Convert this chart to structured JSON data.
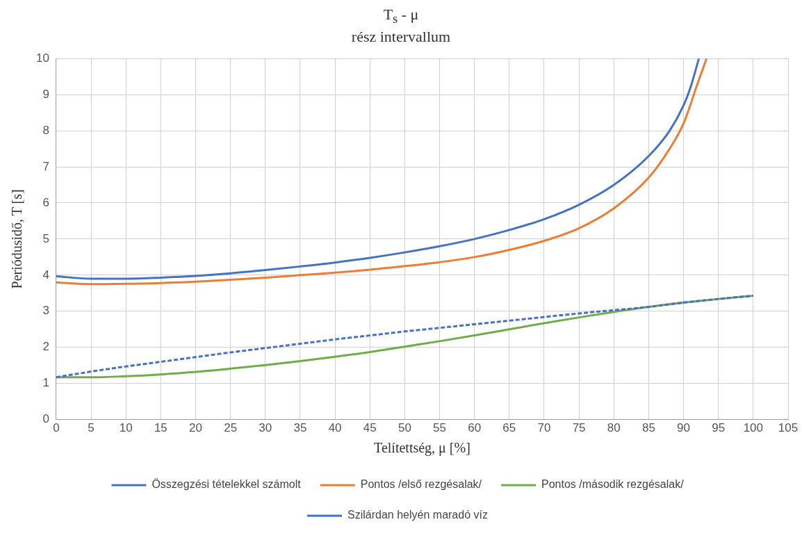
{
  "chart_data": {
    "type": "line",
    "title": "T$_{s}$ - μ",
    "subtitle": "rész intervallum",
    "xlabel": "Telítettség, μ [%]",
    "ylabel": "Periódusidő, T [s]",
    "xlim": [
      0,
      105
    ],
    "xticks": [
      0,
      5,
      10,
      15,
      20,
      25,
      30,
      35,
      40,
      45,
      50,
      55,
      60,
      65,
      70,
      75,
      80,
      85,
      90,
      95,
      100,
      105
    ],
    "ylim": [
      0,
      10
    ],
    "yticks": [
      0,
      1,
      2,
      3,
      4,
      5,
      6,
      7,
      8,
      9,
      10
    ],
    "grid": true,
    "legend": "bottom",
    "marker": "none",
    "series": [
      {
        "name": "Összegzési tételekkel számolt",
        "color": "#4472c4",
        "line_style": "solid",
        "x": [
          0,
          5,
          10,
          15,
          20,
          25,
          30,
          35,
          40,
          45,
          50,
          55,
          60,
          65,
          70,
          75,
          80,
          85,
          88,
          90,
          91,
          92.2
        ],
        "values": [
          3.97,
          3.9,
          3.9,
          3.93,
          3.98,
          4.05,
          4.14,
          4.24,
          4.35,
          4.48,
          4.63,
          4.8,
          5.0,
          5.25,
          5.55,
          5.95,
          6.5,
          7.3,
          8.0,
          8.7,
          9.2,
          10
        ]
      },
      {
        "name": "Pontos /első rezgésalak/",
        "color": "#ed7d31",
        "line_style": "solid",
        "x": [
          0,
          5,
          10,
          15,
          20,
          25,
          30,
          35,
          40,
          45,
          50,
          55,
          60,
          65,
          70,
          75,
          80,
          85,
          88,
          90,
          92,
          93.3
        ],
        "values": [
          3.8,
          3.75,
          3.76,
          3.78,
          3.82,
          3.87,
          3.93,
          4.0,
          4.07,
          4.15,
          4.25,
          4.36,
          4.5,
          4.7,
          4.95,
          5.3,
          5.85,
          6.7,
          7.5,
          8.2,
          9.3,
          10
        ]
      },
      {
        "name": "Pontos /második rezgésalak/",
        "color": "#70ad47",
        "line_style": "solid",
        "x": [
          0,
          5,
          10,
          15,
          20,
          25,
          30,
          35,
          40,
          45,
          50,
          55,
          60,
          65,
          70,
          75,
          80,
          85,
          90,
          95,
          100
        ],
        "values": [
          1.17,
          1.17,
          1.2,
          1.25,
          1.32,
          1.41,
          1.51,
          1.62,
          1.74,
          1.87,
          2.02,
          2.17,
          2.33,
          2.5,
          2.67,
          2.83,
          2.98,
          3.12,
          3.24,
          3.34,
          3.43
        ]
      },
      {
        "name": "Szilárdan helyén maradó víz",
        "color": "#4472c4",
        "line_style": "dashed",
        "x": [
          0,
          5,
          10,
          15,
          20,
          25,
          30,
          35,
          40,
          45,
          50,
          55,
          60,
          65,
          70,
          75,
          80,
          85,
          90,
          95,
          100
        ],
        "values": [
          1.17,
          1.33,
          1.47,
          1.6,
          1.73,
          1.86,
          1.98,
          2.1,
          2.22,
          2.33,
          2.44,
          2.54,
          2.64,
          2.74,
          2.84,
          2.94,
          3.03,
          3.12,
          3.24,
          3.34,
          3.43
        ]
      }
    ]
  }
}
